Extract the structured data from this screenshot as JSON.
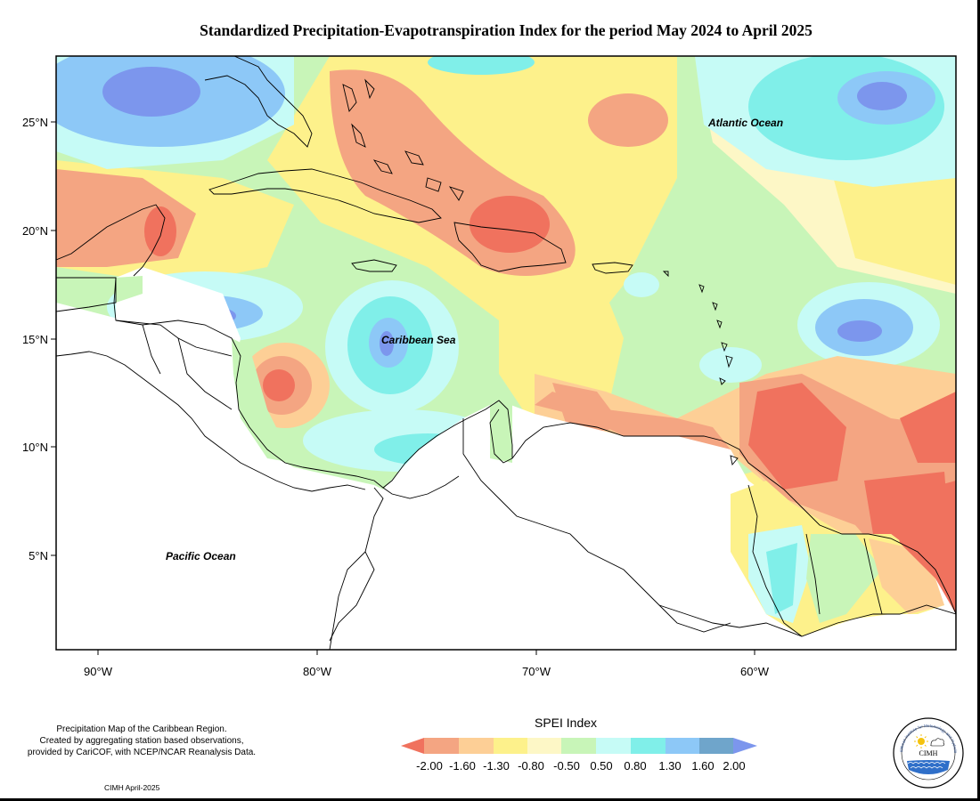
{
  "title": "Standardized Precipitation-Evapotranspiration Index for the period May 2024 to April 2025",
  "map": {
    "lat_labels": [
      "25°N",
      "20°N",
      "15°N",
      "10°N",
      "5°N"
    ],
    "lon_labels": [
      "90°W",
      "80°W",
      "70°W",
      "60°W"
    ],
    "ocean_labels": {
      "atlantic": "Atlantic Ocean",
      "caribbean": "Caribbean Sea",
      "pacific": "Pacific Ocean"
    }
  },
  "legend": {
    "title": "SPEI Index",
    "ticks": [
      "-2.00",
      "-1.60",
      "-1.30",
      "-0.80",
      "-0.50",
      "0.50",
      "0.80",
      "1.30",
      "1.60",
      "2.00"
    ],
    "colors": [
      "#f0725e",
      "#f4a582",
      "#fdcf96",
      "#fdf18b",
      "#fdf7c6",
      "#c8f5b8",
      "#c6fbf6",
      "#80efe9",
      "#8dc8f7",
      "#6fa5cb",
      "#7c96ed"
    ]
  },
  "credit": {
    "lines": [
      "Precipitation Map of the Caribbean Region.",
      "Created by aggregating station based observations,",
      "provided by CariCOF, with NCEP/NCAR Reanalysis Data."
    ],
    "date": "CIMH April-2025"
  },
  "logo": {
    "text": "CIMH",
    "arc_text": "Caribbean Institute for Meteorology and Hydrology"
  }
}
